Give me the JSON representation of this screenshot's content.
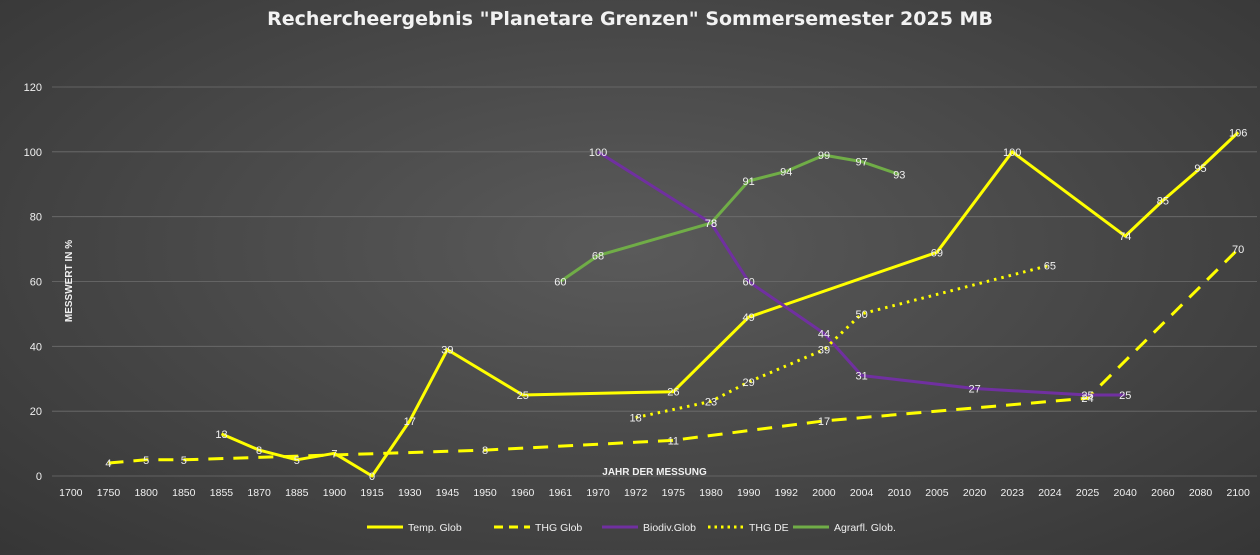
{
  "chart_data": {
    "type": "line",
    "title": "Rechercheergebnis \"Planetare Grenzen\" Sommersemester 2025 MB",
    "xlabel": "JAHR DER MESSUNG",
    "ylabel": "MESSWERT IN %",
    "ylim": [
      0,
      120
    ],
    "yticks": [
      0,
      20,
      40,
      60,
      80,
      100,
      120
    ],
    "grid": true,
    "legend_position": "bottom",
    "categories": [
      "1700",
      "1750",
      "1800",
      "1850",
      "1855",
      "1870",
      "1885",
      "1900",
      "1915",
      "1930",
      "1945",
      "1950",
      "1960",
      "1961",
      "1970",
      "1972",
      "1975",
      "1980",
      "1990",
      "1992",
      "2000",
      "2004",
      "2010",
      "2005",
      "2020",
      "2023",
      "2024",
      "2025",
      "2040",
      "2060",
      "2080",
      "2100"
    ],
    "series": [
      {
        "name": "Temp. Glob",
        "color": "#ffff00",
        "style": "solid",
        "values": [
          null,
          null,
          null,
          null,
          13,
          8,
          5,
          7,
          0,
          17,
          39,
          null,
          25,
          null,
          null,
          null,
          26,
          null,
          49,
          null,
          null,
          null,
          null,
          69,
          null,
          100,
          null,
          null,
          74,
          85,
          95,
          106
        ]
      },
      {
        "name": "THG Glob",
        "color": "#ffff00",
        "style": "dashed",
        "values": [
          null,
          4,
          5,
          5,
          null,
          null,
          null,
          null,
          null,
          null,
          null,
          8,
          null,
          null,
          null,
          null,
          11,
          null,
          null,
          null,
          17,
          null,
          null,
          null,
          null,
          null,
          null,
          24,
          null,
          null,
          null,
          70
        ]
      },
      {
        "name": "Biodiv.Glob",
        "color": "#7030a0",
        "style": "solid",
        "values": [
          null,
          null,
          null,
          null,
          null,
          null,
          null,
          null,
          null,
          null,
          null,
          null,
          null,
          null,
          100,
          null,
          null,
          78,
          60,
          null,
          44,
          31,
          null,
          null,
          27,
          null,
          null,
          25,
          25,
          null,
          null,
          null
        ]
      },
      {
        "name": "THG DE",
        "color": "#ffff00",
        "style": "dotted",
        "values": [
          null,
          null,
          null,
          null,
          null,
          null,
          null,
          null,
          null,
          null,
          null,
          null,
          null,
          null,
          null,
          18,
          null,
          23,
          29,
          null,
          39,
          50,
          null,
          null,
          null,
          null,
          65,
          null,
          null,
          null,
          null,
          null
        ]
      },
      {
        "name": "Agrarfl. Glob.",
        "color": "#70ad47",
        "style": "solid",
        "values": [
          null,
          null,
          null,
          null,
          null,
          null,
          null,
          null,
          null,
          null,
          null,
          null,
          null,
          60,
          68,
          null,
          null,
          78,
          91,
          94,
          99,
          97,
          93,
          null,
          null,
          null,
          null,
          null,
          null,
          null,
          null,
          null
        ]
      }
    ]
  }
}
